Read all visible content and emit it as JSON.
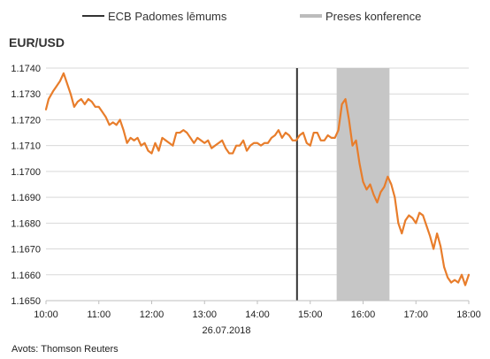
{
  "chart_data": {
    "type": "line",
    "title": "EUR/USD",
    "date_label": "26.07.2018",
    "source": "Avots: Thomson Reuters",
    "xlabel": "",
    "ylabel": "",
    "x_ticks": [
      "10:00",
      "11:00",
      "12:00",
      "13:00",
      "14:00",
      "15:00",
      "16:00",
      "17:00",
      "18:00"
    ],
    "y_ticks": [
      "1.1650",
      "1.1660",
      "1.1670",
      "1.1680",
      "1.1690",
      "1.1700",
      "1.1710",
      "1.1720",
      "1.1730",
      "1.1740"
    ],
    "xlim": [
      "10:00",
      "18:00"
    ],
    "ylim": [
      1.165,
      1.174
    ],
    "grid": "horizontal",
    "legend_position": "top",
    "legend": [
      {
        "label": "ECB Padomes lēmums",
        "kind": "vertical-line"
      },
      {
        "label": "Preses konference",
        "kind": "shaded-band"
      }
    ],
    "ecb_decision_time": "14:45",
    "press_conference": {
      "start": "15:30",
      "end": "16:30"
    },
    "series": [
      {
        "color": "#e87d2b",
        "x": [
          "10:00",
          "10:03",
          "10:08",
          "10:12",
          "10:16",
          "10:20",
          "10:24",
          "10:28",
          "10:32",
          "10:36",
          "10:40",
          "10:44",
          "10:48",
          "10:52",
          "10:56",
          "11:00",
          "11:04",
          "11:08",
          "11:12",
          "11:16",
          "11:20",
          "11:24",
          "11:28",
          "11:32",
          "11:36",
          "11:40",
          "11:44",
          "11:48",
          "11:52",
          "11:56",
          "12:00",
          "12:04",
          "12:08",
          "12:12",
          "12:16",
          "12:20",
          "12:24",
          "12:28",
          "12:32",
          "12:36",
          "12:40",
          "12:44",
          "12:48",
          "12:52",
          "12:56",
          "13:00",
          "13:04",
          "13:08",
          "13:12",
          "13:16",
          "13:20",
          "13:24",
          "13:28",
          "13:32",
          "13:36",
          "13:40",
          "13:44",
          "13:48",
          "13:52",
          "13:56",
          "14:00",
          "14:04",
          "14:08",
          "14:12",
          "14:16",
          "14:20",
          "14:24",
          "14:28",
          "14:32",
          "14:36",
          "14:40",
          "14:44",
          "14:48",
          "14:52",
          "14:56",
          "15:00",
          "15:04",
          "15:08",
          "15:12",
          "15:16",
          "15:20",
          "15:24",
          "15:28",
          "15:32",
          "15:36",
          "15:40",
          "15:44",
          "15:48",
          "15:52",
          "15:56",
          "16:00",
          "16:04",
          "16:08",
          "16:12",
          "16:16",
          "16:20",
          "16:24",
          "16:28",
          "16:32",
          "16:36",
          "16:40",
          "16:44",
          "16:48",
          "16:52",
          "16:56",
          "17:00",
          "17:04",
          "17:08",
          "17:12",
          "17:16",
          "17:20",
          "17:24",
          "17:28",
          "17:32",
          "17:36",
          "17:40",
          "17:44",
          "17:48",
          "17:52",
          "17:56",
          "18:00"
        ],
        "values": [
          1.1724,
          1.1728,
          1.1731,
          1.1733,
          1.1735,
          1.1738,
          1.1734,
          1.173,
          1.1725,
          1.1727,
          1.1728,
          1.1726,
          1.1728,
          1.1727,
          1.1725,
          1.1725,
          1.1723,
          1.1721,
          1.1718,
          1.1719,
          1.1718,
          1.172,
          1.1716,
          1.1711,
          1.1713,
          1.1712,
          1.1713,
          1.171,
          1.1711,
          1.1708,
          1.1707,
          1.1711,
          1.1708,
          1.1713,
          1.1712,
          1.1711,
          1.171,
          1.1715,
          1.1715,
          1.1716,
          1.1715,
          1.1713,
          1.1711,
          1.1713,
          1.1712,
          1.1711,
          1.1712,
          1.1709,
          1.171,
          1.1711,
          1.1712,
          1.1709,
          1.1707,
          1.1707,
          1.171,
          1.171,
          1.1712,
          1.1708,
          1.171,
          1.1711,
          1.1711,
          1.171,
          1.1711,
          1.1711,
          1.1713,
          1.1714,
          1.1716,
          1.1713,
          1.1715,
          1.1714,
          1.1712,
          1.1712,
          1.1714,
          1.1715,
          1.1711,
          1.171,
          1.1715,
          1.1715,
          1.1712,
          1.1712,
          1.1714,
          1.1713,
          1.1713,
          1.1716,
          1.1726,
          1.1728,
          1.172,
          1.171,
          1.1712,
          1.1703,
          1.1696,
          1.1693,
          1.1695,
          1.1691,
          1.1688,
          1.1692,
          1.1694,
          1.1698,
          1.1695,
          1.169,
          1.168,
          1.1676,
          1.1681,
          1.1683,
          1.1682,
          1.168,
          1.1684,
          1.1683,
          1.1679,
          1.1675,
          1.167,
          1.1676,
          1.1671,
          1.1663,
          1.1659,
          1.1657,
          1.1658,
          1.1657,
          1.166,
          1.1656,
          1.166
        ]
      }
    ]
  }
}
